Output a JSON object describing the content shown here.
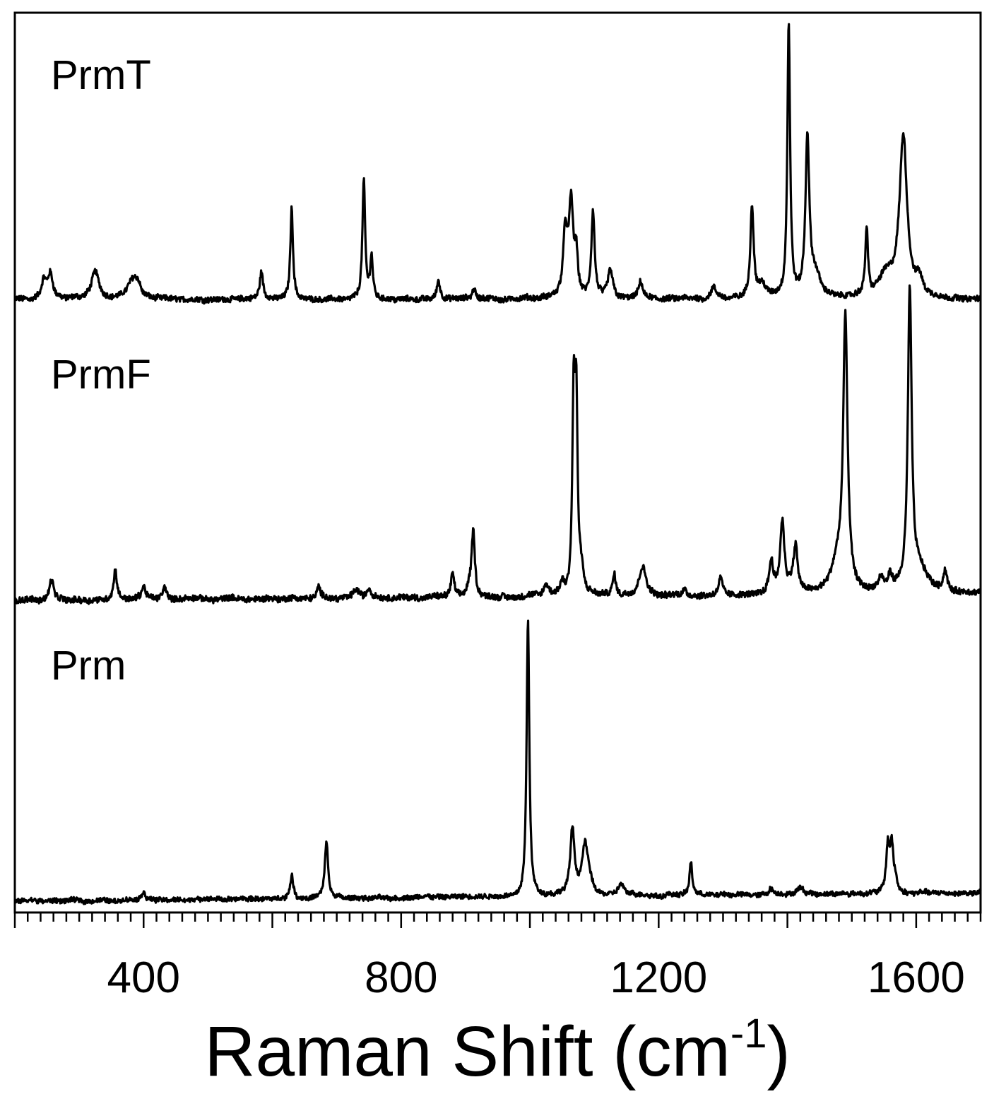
{
  "chart_data": {
    "type": "line",
    "xlabel": "Raman Shift (cm",
    "xlabel_sup": "-1",
    "xlabel_close": ")",
    "xlim": [
      200,
      1700
    ],
    "x_ticks": [
      400,
      800,
      1200,
      1600
    ],
    "x_tick_labels": [
      "400",
      "800",
      "1200",
      "1600"
    ],
    "x_minor_tick_step": 20,
    "y_axis_visible": false,
    "grid": false,
    "line_color": "#000000",
    "series": [
      {
        "name": "PrmT",
        "baseline_slope": 0,
        "noise": 0.01,
        "peaks": [
          [
            245,
            0.06,
            4
          ],
          [
            255,
            0.09,
            5
          ],
          [
            325,
            0.1,
            7
          ],
          [
            382,
            0.06,
            9
          ],
          [
            390,
            0.05,
            6
          ],
          [
            583,
            0.1,
            3
          ],
          [
            630,
            0.33,
            2.5
          ],
          [
            742,
            0.43,
            2.5
          ],
          [
            754,
            0.15,
            2.5
          ],
          [
            858,
            0.07,
            3
          ],
          [
            913,
            0.04,
            3
          ],
          [
            1055,
            0.24,
            4
          ],
          [
            1064,
            0.33,
            4
          ],
          [
            1072,
            0.14,
            3
          ],
          [
            1098,
            0.31,
            3
          ],
          [
            1125,
            0.1,
            5
          ],
          [
            1172,
            0.06,
            4
          ],
          [
            1285,
            0.04,
            5
          ],
          [
            1345,
            0.33,
            3
          ],
          [
            1360,
            0.05,
            8
          ],
          [
            1402,
            1.0,
            2.5
          ],
          [
            1431,
            0.57,
            3.5
          ],
          [
            1443,
            0.08,
            10
          ],
          [
            1523,
            0.24,
            2.5
          ],
          [
            1553,
            0.08,
            14
          ],
          [
            1580,
            0.58,
            7
          ],
          [
            1605,
            0.06,
            6
          ]
        ]
      },
      {
        "name": "PrmF",
        "baseline_slope": 0.02,
        "noise": 0.01,
        "peaks": [
          [
            257,
            0.07,
            4
          ],
          [
            356,
            0.1,
            3
          ],
          [
            400,
            0.04,
            4
          ],
          [
            433,
            0.04,
            4
          ],
          [
            672,
            0.04,
            3
          ],
          [
            730,
            0.03,
            6
          ],
          [
            750,
            0.03,
            4
          ],
          [
            880,
            0.08,
            3
          ],
          [
            906,
            0.03,
            4
          ],
          [
            912,
            0.22,
            3
          ],
          [
            1025,
            0.04,
            4
          ],
          [
            1050,
            0.04,
            4
          ],
          [
            1068,
            0.63,
            2.5
          ],
          [
            1072,
            0.6,
            2.5
          ],
          [
            1080,
            0.07,
            4
          ],
          [
            1131,
            0.07,
            3
          ],
          [
            1175,
            0.1,
            7
          ],
          [
            1240,
            0.02,
            5
          ],
          [
            1296,
            0.06,
            4
          ],
          [
            1375,
            0.11,
            4
          ],
          [
            1392,
            0.24,
            4
          ],
          [
            1413,
            0.12,
            3
          ],
          [
            1410,
            0.05,
            8
          ],
          [
            1478,
            0.1,
            12
          ],
          [
            1490,
            0.9,
            4
          ],
          [
            1545,
            0.04,
            5
          ],
          [
            1560,
            0.05,
            4
          ],
          [
            1590,
            1.0,
            3.5
          ],
          [
            1605,
            0.08,
            16
          ],
          [
            1645,
            0.07,
            4
          ]
        ]
      },
      {
        "name": "Prm",
        "baseline_slope": 0.03,
        "noise": 0.008,
        "peaks": [
          [
            400,
            0.03,
            3
          ],
          [
            630,
            0.08,
            3
          ],
          [
            684,
            0.2,
            3
          ],
          [
            997,
            0.97,
            2.5
          ],
          [
            1066,
            0.23,
            4
          ],
          [
            1085,
            0.14,
            5
          ],
          [
            1090,
            0.06,
            7
          ],
          [
            1142,
            0.04,
            5
          ],
          [
            1250,
            0.12,
            2.5
          ],
          [
            1374,
            0.02,
            4
          ],
          [
            1420,
            0.02,
            6
          ],
          [
            1556,
            0.16,
            3
          ],
          [
            1562,
            0.16,
            3
          ],
          [
            1568,
            0.04,
            3
          ]
        ]
      }
    ]
  }
}
